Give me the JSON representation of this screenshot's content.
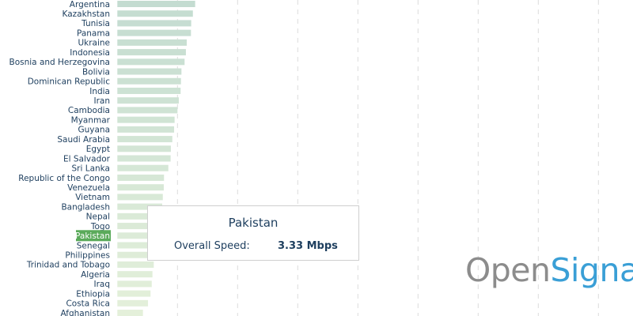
{
  "chart_data": {
    "type": "bar",
    "orientation": "horizontal",
    "categories": [
      "Argentina",
      "Kazakhstan",
      "Tunisia",
      "Panama",
      "Ukraine",
      "Indonesia",
      "Bosnia and Herzegovina",
      "Bolivia",
      "Dominican Republic",
      "India",
      "Iran",
      "Cambodia",
      "Myanmar",
      "Guyana",
      "Saudi Arabia",
      "Egypt",
      "El Salvador",
      "Sri Lanka",
      "Republic of the Congo",
      "Venezuela",
      "Vietnam",
      "Bangladesh",
      "Nepal",
      "Togo",
      "Pakistan",
      "Senegal",
      "Philippines",
      "Trinidad and Tobago",
      "Algeria",
      "Iraq",
      "Ethiopia",
      "Costa Rica",
      "Afghanistan"
    ],
    "values": [
      6.47,
      6.28,
      6.14,
      6.12,
      5.77,
      5.7,
      5.59,
      5.33,
      5.29,
      5.26,
      5.11,
      5.0,
      4.76,
      4.72,
      4.57,
      4.45,
      4.43,
      4.24,
      3.88,
      3.86,
      3.78,
      3.73,
      3.6,
      3.5,
      3.33,
      3.3,
      3.25,
      3.03,
      2.92,
      2.86,
      2.76,
      2.55,
      2.13
    ],
    "unit": "Mbps",
    "xlim": [
      0,
      40
    ],
    "grid": true,
    "highlighted": "Pakistan",
    "colors": {
      "bar_top": "#c4dcd1",
      "bar_bottom": "#e4f0da",
      "highlight": "#5aaa5a",
      "label": "#1d3e5e",
      "grid": "#dcdcdc"
    }
  },
  "tooltip": {
    "title": "Pakistan",
    "key": "Overall Speed:",
    "value": "3.33 Mbps"
  },
  "logo": {
    "part1": "Open",
    "part2": "Signal",
    "color1": "#8c8c8c",
    "color2": "#3a9fd6"
  }
}
